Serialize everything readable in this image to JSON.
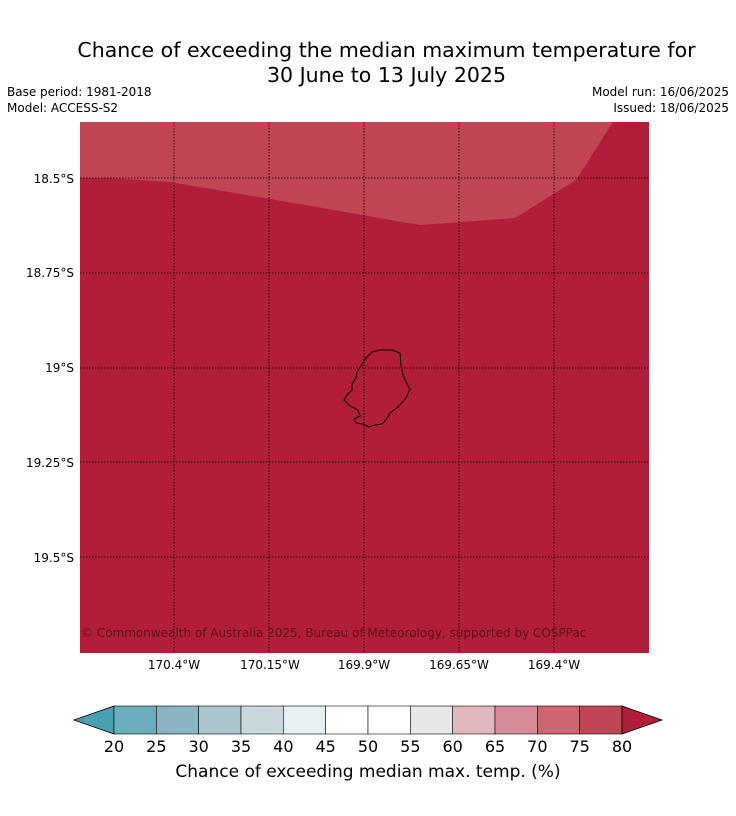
{
  "title_line1": "Chance of exceeding the median maximum temperature for",
  "title_line2": "30 June to 13 July 2025",
  "base_period": "Base period: 1981-2018",
  "model": "Model: ACCESS-S2",
  "model_run": "Model run: 16/06/2025",
  "issued": "Issued: 18/06/2025",
  "lat_labels": [
    "18.5°S",
    "18.75°S",
    "19°S",
    "19.25°S",
    "19.5°S"
  ],
  "lon_labels": [
    "170.4°W",
    "170.15°W",
    "169.9°W",
    "169.65°W",
    "169.4°W"
  ],
  "copyright": "© Commonwealth of Australia 2025, Bureau of Meteorology, supported by COSPPac",
  "colorbar": {
    "label": "Chance of exceeding median max. temp. (%)",
    "ticks": [
      "20",
      "25",
      "30",
      "35",
      "40",
      "45",
      "50",
      "55",
      "60",
      "65",
      "70",
      "75",
      "80"
    ],
    "colors": [
      "#4a9fb2",
      "#6aaebd",
      "#8ab5c2",
      "#a8c6cb",
      "#c8d8db",
      "#e8f0f1",
      "#ffffff",
      "#ffffff",
      "#e8e6e7",
      "#e1b8bd",
      "#d68b96",
      "#cb6672",
      "#c04656",
      "#b21e3a"
    ]
  },
  "map_colors": {
    "dominant": "#b21e3a",
    "upper_band": "#c04656"
  }
}
